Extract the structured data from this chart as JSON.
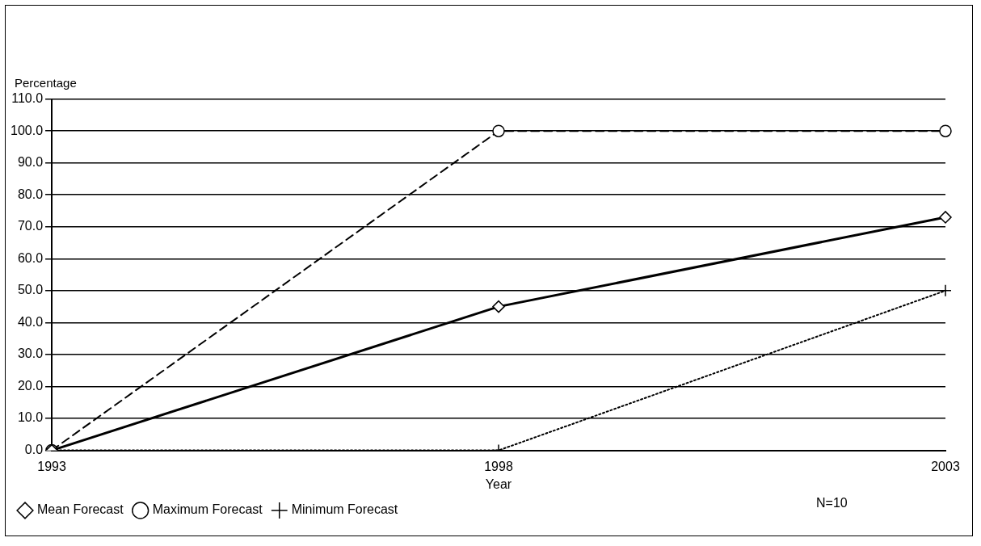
{
  "chart_data": {
    "type": "line",
    "ylabel": "Percentage",
    "xlabel": "Year",
    "categories": [
      "1993",
      "1998",
      "2003"
    ],
    "series": [
      {
        "name": "Mean Forecast",
        "color": "#000000",
        "values": [
          0,
          45,
          73
        ],
        "marker": "diamond",
        "line_style": "solid"
      },
      {
        "name": "Maximum Forecast",
        "color": "#000000",
        "values": [
          0,
          100,
          100
        ],
        "marker": "circle",
        "line_style": "dashed"
      },
      {
        "name": "Minimum Forecast",
        "color": "#000000",
        "values": [
          0,
          0,
          50
        ],
        "marker": "cross",
        "line_style": "dotted"
      }
    ],
    "ylim": [
      0,
      110
    ],
    "yticks": [
      {
        "value": 0,
        "label": "0.0"
      },
      {
        "value": 10,
        "label": "10.0"
      },
      {
        "value": 20,
        "label": "20.0"
      },
      {
        "value": 30,
        "label": "30.0"
      },
      {
        "value": 40,
        "label": "40.0"
      },
      {
        "value": 50,
        "label": "50.0"
      },
      {
        "value": 60,
        "label": "60.0"
      },
      {
        "value": 70,
        "label": "70.0"
      },
      {
        "value": 80,
        "label": "80.0"
      },
      {
        "value": 90,
        "label": "90.0"
      },
      {
        "value": 100,
        "label": "100.0"
      },
      {
        "value": 110,
        "label": "110.0"
      }
    ],
    "grid": "y",
    "legend": "bottom",
    "annotations": [
      "N=10"
    ]
  }
}
